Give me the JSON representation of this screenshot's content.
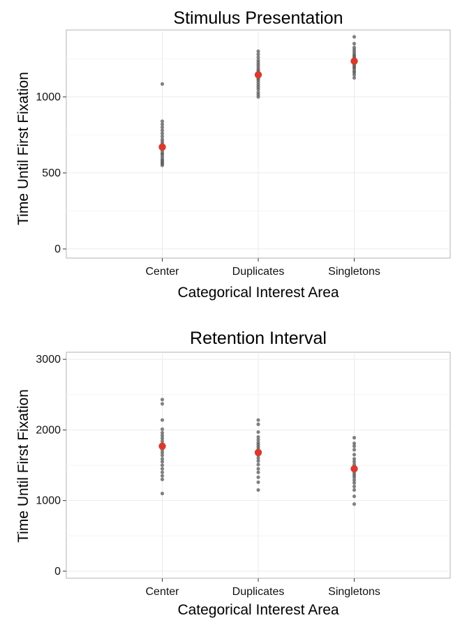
{
  "chart_data": [
    {
      "type": "scatter",
      "title": "Stimulus Presentation",
      "xlabel": "Categorical Interest Area",
      "ylabel": "Time Until First Fixation",
      "categories": [
        "Center",
        "Duplicates",
        "Singletons"
      ],
      "ylim": [
        -60,
        1440
      ],
      "yticks": [
        "0",
        "500",
        "1000"
      ],
      "ytick_values": [
        0,
        500,
        1000
      ],
      "grid": true,
      "point_color": "#595959",
      "mean_color": "#d93a2b",
      "series": [
        {
          "category": "Center",
          "mean": 670,
          "points": [
            1085,
            840,
            820,
            800,
            780,
            760,
            740,
            720,
            705,
            690,
            675,
            660,
            645,
            630,
            620,
            605,
            590,
            580,
            570,
            560,
            550
          ]
        },
        {
          "category": "Duplicates",
          "mean": 1145,
          "points": [
            1300,
            1280,
            1260,
            1240,
            1225,
            1210,
            1195,
            1180,
            1170,
            1160,
            1150,
            1140,
            1130,
            1120,
            1110,
            1095,
            1080,
            1065,
            1050,
            1030,
            1015,
            1000
          ]
        },
        {
          "category": "Singletons",
          "mean": 1235,
          "points": [
            1395,
            1350,
            1325,
            1310,
            1295,
            1280,
            1270,
            1260,
            1250,
            1240,
            1232,
            1225,
            1215,
            1205,
            1195,
            1185,
            1170,
            1160,
            1145,
            1125
          ]
        }
      ]
    },
    {
      "type": "scatter",
      "title": "Retention Interval",
      "xlabel": "Categorical Interest Area",
      "ylabel": "Time Until First Fixation",
      "categories": [
        "Center",
        "Duplicates",
        "Singletons"
      ],
      "ylim": [
        -100,
        3100
      ],
      "yticks": [
        "0",
        "1000",
        "2000",
        "3000"
      ],
      "ytick_values": [
        0,
        1000,
        2000,
        3000
      ],
      "grid": true,
      "point_color": "#595959",
      "mean_color": "#d93a2b",
      "series": [
        {
          "category": "Center",
          "mean": 1770,
          "points": [
            2430,
            2370,
            2140,
            2010,
            1960,
            1920,
            1880,
            1840,
            1800,
            1760,
            1720,
            1680,
            1640,
            1590,
            1550,
            1500,
            1450,
            1400,
            1350,
            1300,
            1100
          ]
        },
        {
          "category": "Duplicates",
          "mean": 1680,
          "points": [
            2140,
            2080,
            1970,
            1900,
            1860,
            1820,
            1790,
            1760,
            1730,
            1700,
            1670,
            1640,
            1600,
            1560,
            1510,
            1450,
            1400,
            1330,
            1260,
            1150
          ]
        },
        {
          "category": "Singletons",
          "mean": 1450,
          "points": [
            1890,
            1810,
            1770,
            1720,
            1650,
            1590,
            1550,
            1510,
            1480,
            1450,
            1420,
            1390,
            1360,
            1330,
            1290,
            1250,
            1200,
            1150,
            1060,
            950
          ]
        }
      ]
    }
  ]
}
